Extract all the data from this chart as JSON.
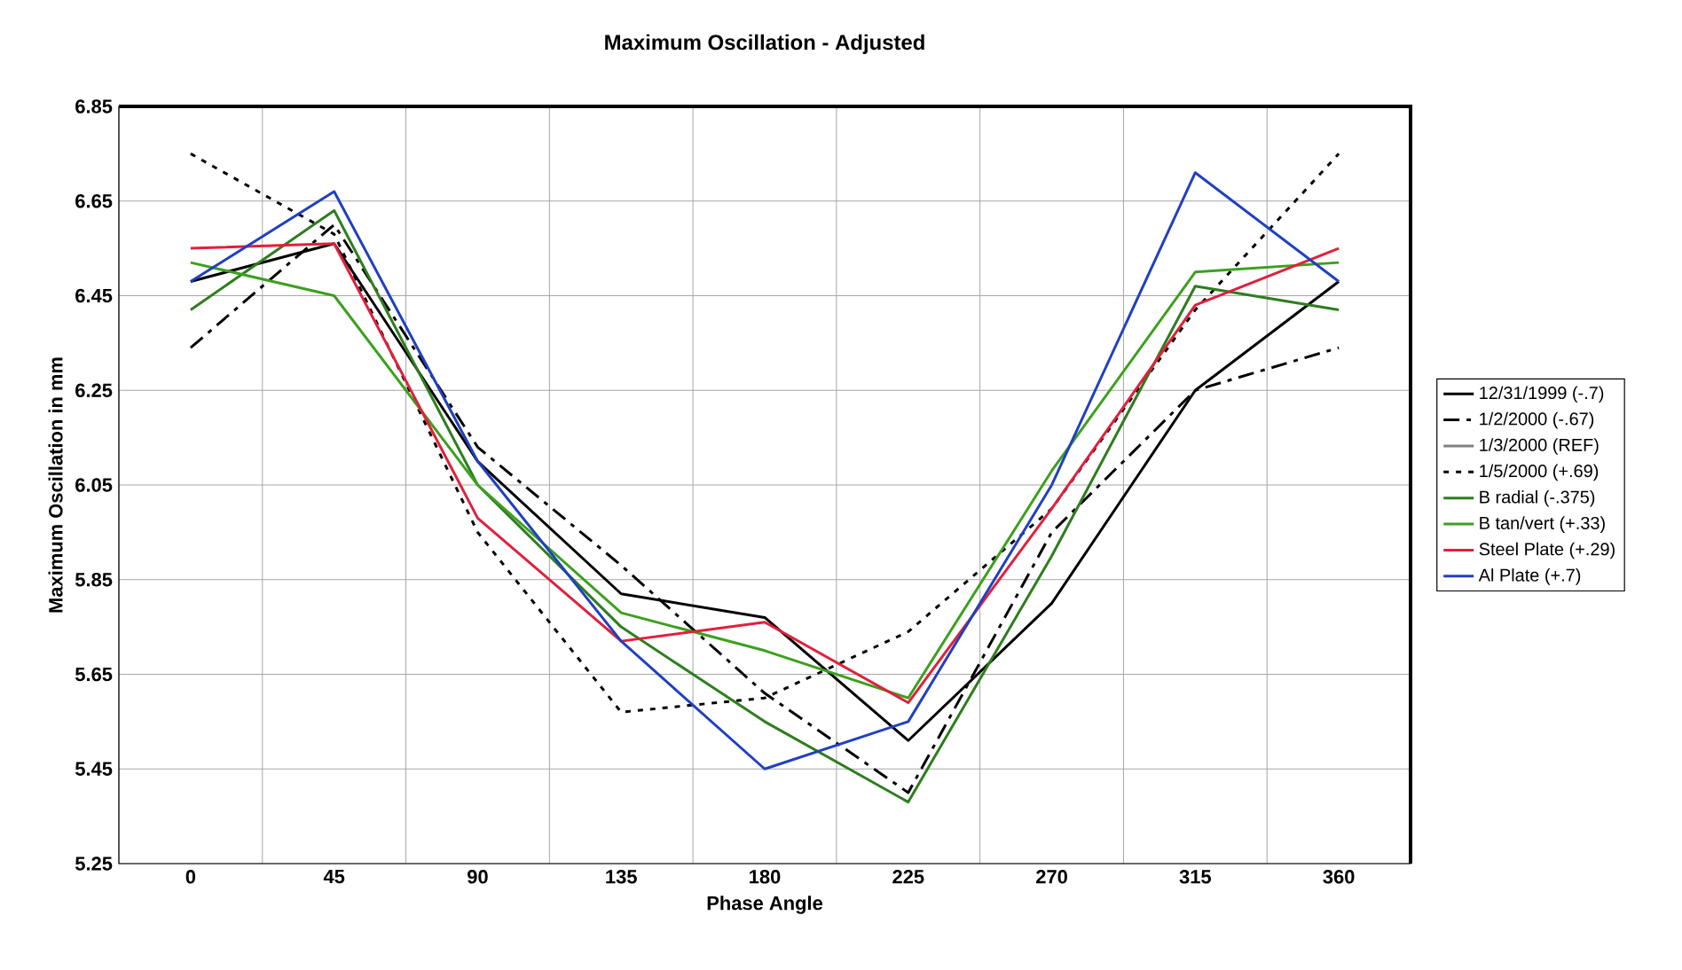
{
  "chart_data": {
    "type": "line",
    "title": "Maximum Oscillation - Adjusted",
    "xlabel": "Phase Angle",
    "ylabel": "Maximum Oscillation in mm",
    "categories": [
      "0",
      "45",
      "90",
      "135",
      "180",
      "225",
      "270",
      "315",
      "360"
    ],
    "ylim": [
      5.25,
      6.85
    ],
    "yticks": [
      5.25,
      5.45,
      5.65,
      5.85,
      6.05,
      6.25,
      6.45,
      6.65,
      6.85
    ],
    "grid": true,
    "legend": "right",
    "marker": "none",
    "series": [
      {
        "name": "12/31/1999 (-.7)",
        "color": "#000000",
        "line_style": "solid",
        "values": [
          6.48,
          6.56,
          6.1,
          5.82,
          5.77,
          5.51,
          5.8,
          6.25,
          6.48
        ]
      },
      {
        "name": "1/2/2000 (-.67)",
        "color": "#000000",
        "line_style": "dashed",
        "values": [
          6.34,
          6.6,
          6.13,
          5.88,
          5.61,
          5.4,
          5.95,
          6.25,
          6.34
        ]
      },
      {
        "name": "1/3/2000 (REF)",
        "color": "#808080",
        "line_style": "solid",
        "values": [
          null,
          null,
          null,
          null,
          null,
          null,
          null,
          null,
          null
        ]
      },
      {
        "name": "1/5/2000 (+.69)",
        "color": "#000000",
        "line_style": "dotted",
        "values": [
          6.75,
          6.58,
          5.95,
          5.57,
          5.6,
          5.74,
          6.0,
          6.42,
          6.75
        ]
      },
      {
        "name": "B radial (-.375)",
        "color": "#2e7d1e",
        "line_style": "solid",
        "values": [
          6.42,
          6.63,
          6.05,
          5.75,
          5.55,
          5.38,
          5.9,
          6.47,
          6.42
        ]
      },
      {
        "name": "B tan/vert (+.33)",
        "color": "#3ca01e",
        "line_style": "solid",
        "values": [
          6.52,
          6.45,
          6.05,
          5.78,
          5.7,
          5.6,
          6.08,
          6.5,
          6.52
        ]
      },
      {
        "name": "Steel Plate (+.29)",
        "color": "#e0203c",
        "line_style": "solid",
        "values": [
          6.55,
          6.56,
          5.98,
          5.72,
          5.76,
          5.59,
          6.0,
          6.43,
          6.55
        ]
      },
      {
        "name": "Al Plate (+.7)",
        "color": "#2040c0",
        "line_style": "solid",
        "values": [
          6.48,
          6.67,
          6.1,
          5.72,
          5.45,
          5.55,
          6.05,
          6.71,
          6.48
        ]
      }
    ]
  }
}
